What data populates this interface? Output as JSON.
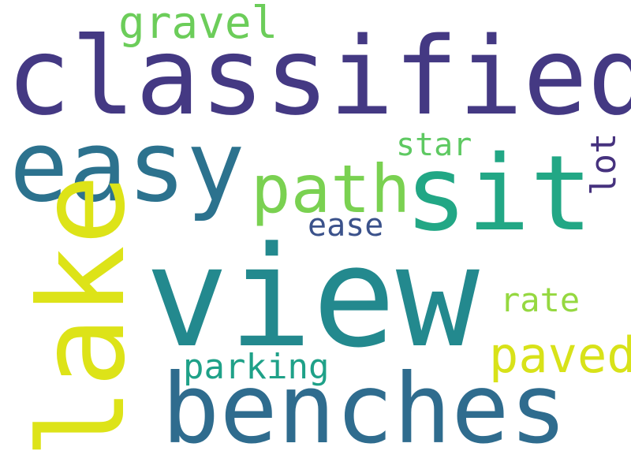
{
  "words": {
    "view": {
      "text": "view",
      "color": "#23898e"
    },
    "classified": {
      "text": "classified",
      "color": "#443983"
    },
    "benches": {
      "text": "benches",
      "color": "#2f6c8e"
    },
    "easy": {
      "text": "easy",
      "color": "#2c728e"
    },
    "sit": {
      "text": "sit",
      "color": "#22a785"
    },
    "lake": {
      "text": "lake",
      "color": "#dde318"
    },
    "path": {
      "text": "path",
      "color": "#7ad151"
    },
    "paved": {
      "text": "paved",
      "color": "#d8e219"
    },
    "gravel": {
      "text": "gravel",
      "color": "#6ccd5a"
    },
    "parking": {
      "text": "parking",
      "color": "#1fa188"
    },
    "rate": {
      "text": "rate",
      "color": "#95d840"
    },
    "star": {
      "text": "star",
      "color": "#5ec962"
    },
    "ease": {
      "text": "ease",
      "color": "#3b528b"
    },
    "lot": {
      "text": "lot",
      "color": "#46327e"
    }
  }
}
